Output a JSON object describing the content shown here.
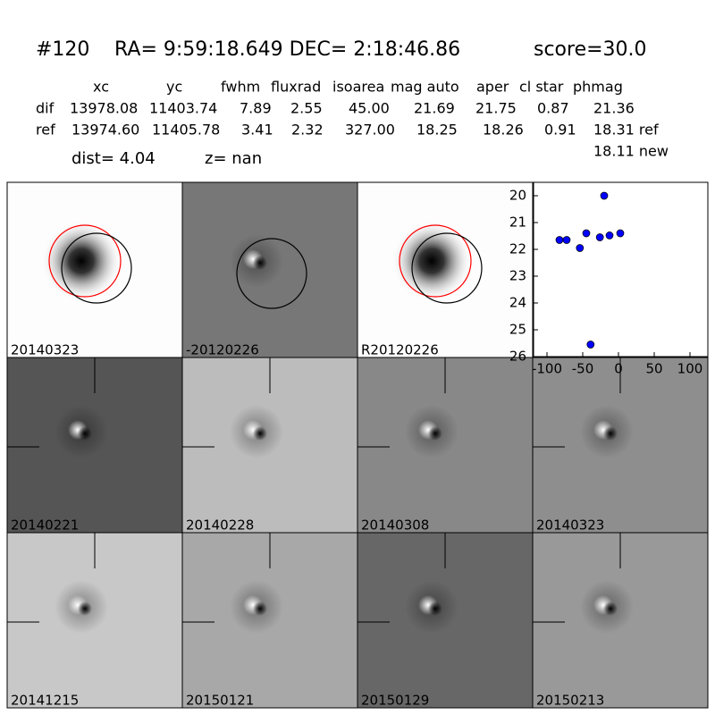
{
  "header": {
    "id": "#120",
    "coords": "RA= 9:59:18.649 DEC= 2:18:46.86",
    "score": "score=30.0"
  },
  "table": {
    "columns": [
      "xc",
      "yc",
      "fwhm",
      "fluxrad",
      "isoarea",
      "mag auto",
      "aper",
      "cl star",
      "phmag"
    ],
    "rows": [
      {
        "label": "dif",
        "cells": [
          "13978.08",
          "11403.74",
          "7.89",
          "2.55",
          "45.00",
          "21.69",
          "21.75",
          "0.87",
          "21.36"
        ]
      },
      {
        "label": "ref",
        "cells": [
          "13974.60",
          "11405.78",
          "3.41",
          "2.32",
          "327.00",
          "18.25",
          "18.26",
          "0.91",
          "18.31 ref"
        ]
      }
    ],
    "new_phmag": "18.11 new"
  },
  "dist": "dist=  4.04",
  "z": "z=   nan",
  "tiles": [
    {
      "label": "20140323"
    },
    {
      "label": "-20120226"
    },
    {
      "label": "R20120226"
    },
    {
      "label": "20140221"
    },
    {
      "label": "20140228"
    },
    {
      "label": "20140308"
    },
    {
      "label": "20140323",
      "color": "#ff0000"
    },
    {
      "label": "20141215"
    },
    {
      "label": "20150121"
    },
    {
      "label": "20150129"
    },
    {
      "label": "20150213"
    }
  ],
  "chart_data": {
    "type": "scatter",
    "color": "#0000ff",
    "x": [
      -82.5,
      -72.5,
      -54,
      -45,
      -39,
      -26,
      -20,
      -12.5,
      2.5
    ],
    "values": [
      21.65,
      21.65,
      21.95,
      21.4,
      25.55,
      21.55,
      20.0,
      21.48,
      21.4
    ],
    "xlim": [
      -120,
      120
    ],
    "xticks": [
      -100,
      -50,
      0,
      50,
      100
    ],
    "ylim": [
      26,
      19.5
    ],
    "yticks": [
      20,
      21,
      22,
      23,
      24,
      25,
      26
    ]
  }
}
